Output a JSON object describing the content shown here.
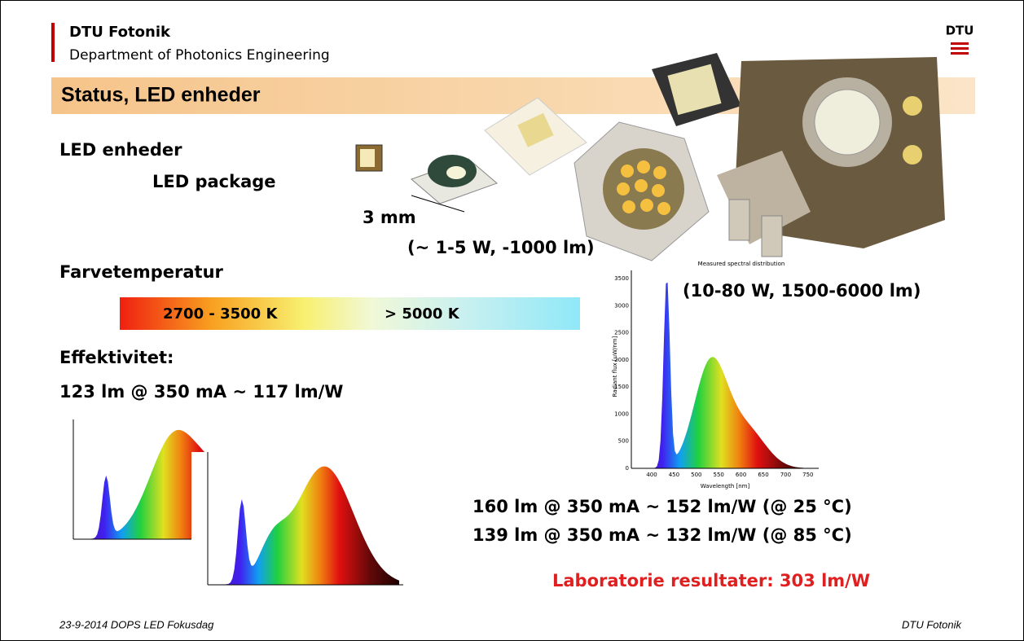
{
  "header": {
    "org": "DTU Fotonik",
    "department": "Department of Photonics Engineering",
    "logo": "DTU"
  },
  "title": "Status, LED enheder",
  "body": {
    "section1": "LED enheder",
    "subsection1": "LED package",
    "size_label": "3 mm",
    "power_small": "(~ 1-5 W, -1000 lm)",
    "section2": "Farvetemperatur",
    "temp_warm": "2700 - 3500 K",
    "temp_cold": "> 5000 K",
    "section3": "Effektivitet:",
    "efficiency1": "123 lm @ 350 mA ~ 117 lm/W",
    "power_large": "(10-80 W, 1500-6000 lm)",
    "efficiency2": "160 lm @ 350 mA ~ 152 lm/W (@ 25 °C)",
    "efficiency3": "139 lm @ 350 mA ~ 132 lm/W (@ 85 °C)",
    "lab_result": "Laboratorie resultater: 303 lm/W"
  },
  "spectrum_chart": {
    "title": "Measured spectral distribution",
    "y_label": "Radiant flux [uW/nm]",
    "x_label": "Wavelength [nm]",
    "yticks": [
      "0",
      "500",
      "1000",
      "1500",
      "2000",
      "2500",
      "3000",
      "3500"
    ],
    "xticks": [
      "400",
      "450",
      "500",
      "550",
      "600",
      "650",
      "700",
      "750"
    ]
  },
  "footer": {
    "left": "23-9-2014  DOPS LED Fokusdag",
    "right": "DTU Fotonik"
  }
}
